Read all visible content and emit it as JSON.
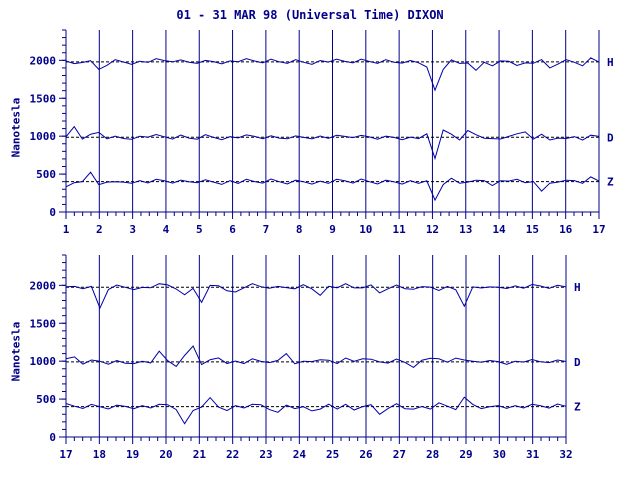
{
  "title": "01 - 31 MAR 98 (Universal Time) DIXON",
  "colors": {
    "axis": "#00008b",
    "trace": "#0000aa",
    "baseline": "#000000"
  },
  "chart_data": [
    {
      "type": "line",
      "ylabel": "Nanotesla",
      "xlim": [
        1,
        17
      ],
      "ylim": [
        0,
        2400
      ],
      "y_ticks": [
        "0",
        "500",
        "1000",
        "1500",
        "2000"
      ],
      "x_ticks": [
        "1",
        "2",
        "3",
        "4",
        "5",
        "6",
        "7",
        "8",
        "9",
        "10",
        "11",
        "12",
        "13",
        "14",
        "15",
        "16",
        "17"
      ],
      "vgrid": true,
      "series": [
        {
          "name": "H",
          "baseline": 1980,
          "values": [
            1960,
            1950,
            1990,
            1970,
            1880,
            1960,
            1990,
            1985,
            1980,
            1975,
            1985,
            1990,
            1990,
            2000,
            1980,
            1975,
            1985,
            1980,
            1990,
            1985,
            1980,
            1995,
            1990,
            1985,
            1985,
            1990,
            1980,
            1985,
            1990,
            1980,
            1980,
            1985,
            1990,
            1985,
            1980,
            1985,
            1990,
            1985,
            1985,
            1990,
            1980,
            1995,
            1985,
            1980,
            1880,
            1600,
            1900,
            1980,
            1960,
            1990,
            1850,
            1980,
            1960,
            1980,
            2000,
            1900,
            1960,
            1980,
            1985,
            1900,
            1975,
            1990,
            1980,
            1960,
            2020,
            1990
          ]
        },
        {
          "name": "D",
          "baseline": 985,
          "values": [
            960,
            1120,
            980,
            1000,
            1050,
            990,
            980,
            975,
            990,
            985,
            1000,
            990,
            985,
            980,
            990,
            975,
            985,
            1000,
            990,
            985,
            980,
            990,
            985,
            990,
            985,
            980,
            975,
            990,
            985,
            990,
            995,
            990,
            985,
            980,
            990,
            1000,
            985,
            990,
            985,
            980,
            990,
            985,
            975,
            980,
            1000,
            700,
            1100,
            1000,
            950,
            1100,
            1000,
            980,
            1000,
            950,
            1010,
            1000,
            1050,
            980,
            1000,
            950,
            1000,
            950,
            1000,
            980,
            1000,
            1010
          ]
        },
        {
          "name": "Z",
          "baseline": 400,
          "values": [
            300,
            380,
            420,
            500,
            360,
            420,
            380,
            400,
            410,
            400,
            395,
            400,
            405,
            400,
            395,
            400,
            410,
            405,
            400,
            395,
            400,
            390,
            400,
            395,
            400,
            410,
            400,
            395,
            400,
            405,
            400,
            395,
            390,
            400,
            405,
            400,
            410,
            400,
            395,
            400,
            405,
            400,
            400,
            390,
            380,
            150,
            380,
            420,
            380,
            420,
            400,
            420,
            380,
            400,
            420,
            400,
            380,
            420,
            250,
            380,
            420,
            400,
            420,
            410,
            450,
            420
          ]
        }
      ]
    },
    {
      "type": "line",
      "ylabel": "Nanotesla",
      "xlim": [
        17,
        32
      ],
      "ylim": [
        0,
        2400
      ],
      "y_ticks": [
        "0",
        "500",
        "1000",
        "1500",
        "2000"
      ],
      "x_ticks": [
        "17",
        "18",
        "19",
        "20",
        "21",
        "22",
        "23",
        "24",
        "25",
        "26",
        "27",
        "28",
        "29",
        "30",
        "31",
        "32"
      ],
      "vgrid": true,
      "series": [
        {
          "name": "H",
          "baseline": 1975,
          "values": [
            1950,
            1980,
            1975,
            1960,
            1700,
            1970,
            1985,
            1980,
            1975,
            1960,
            1980,
            1990,
            2000,
            1970,
            1850,
            1960,
            1800,
            1980,
            2000,
            1960,
            1900,
            1980,
            1990,
            1975,
            1980,
            1960,
            1970,
            1980,
            1990,
            1960,
            1900,
            1975,
            1980,
            1990,
            1960,
            1985,
            1980,
            1900,
            1980,
            1985,
            1960,
            1980,
            1970,
            1990,
            1900,
            1980,
            1960,
            1700,
            1980,
            1990,
            1960,
            1980,
            1990,
            1980,
            1975,
            1980,
            1985,
            1980,
            1975,
            1980
          ]
        },
        {
          "name": "D",
          "baseline": 990,
          "values": [
            1000,
            1050,
            980,
            990,
            1000,
            985,
            990,
            980,
            1000,
            985,
            990,
            1100,
            1000,
            950,
            1050,
            1200,
            980,
            1000,
            1050,
            1000,
            990,
            980,
            1000,
            990,
            1000,
            985,
            1100,
            990,
            980,
            1000,
            1050,
            1000,
            980,
            1010,
            990,
            1050,
            1000,
            990,
            1000,
            1010,
            990,
            950,
            1000,
            1050,
            1000,
            980,
            1060,
            990,
            1000,
            1010,
            990,
            1000,
            990,
            985,
            1000,
            990,
            985,
            1000,
            990,
            995
          ]
        },
        {
          "name": "Z",
          "baseline": 400,
          "values": [
            410,
            400,
            395,
            405,
            400,
            395,
            400,
            410,
            405,
            400,
            395,
            400,
            420,
            380,
            150,
            350,
            420,
            500,
            400,
            380,
            400,
            395,
            400,
            420,
            380,
            300,
            420,
            400,
            380,
            350,
            400,
            420,
            380,
            400,
            350,
            420,
            400,
            300,
            400,
            420,
            380,
            400,
            390,
            380,
            420,
            400,
            380,
            500,
            430,
            400,
            380,
            420,
            410,
            400,
            395,
            400,
            405,
            400,
            410,
            405
          ]
        }
      ]
    }
  ]
}
